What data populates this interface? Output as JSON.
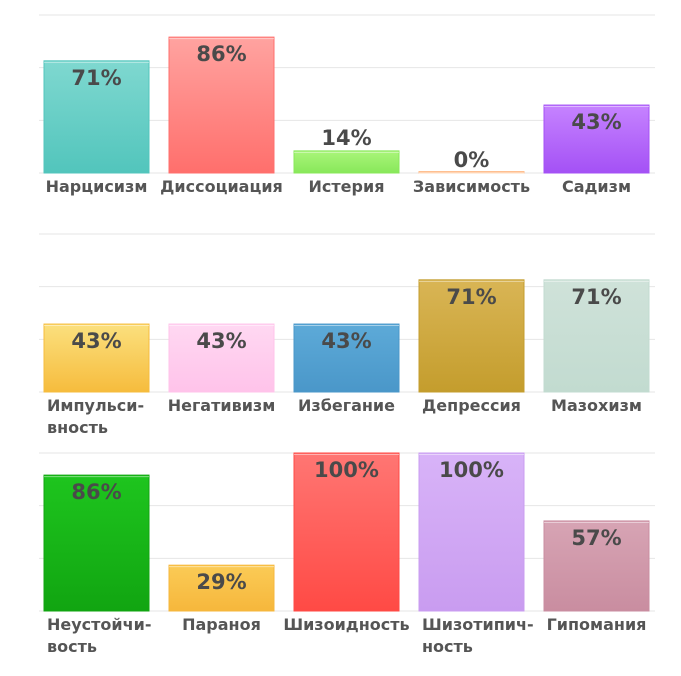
{
  "chart_data": [
    {
      "type": "bar",
      "ylim": [
        0,
        100
      ],
      "categories": [
        "Нарцисизм",
        "Диссоциация",
        "Истерия",
        "Зависимость",
        "Садизм"
      ],
      "category_lines": [
        [
          "Нарцисизм"
        ],
        [
          "Диссоциация"
        ],
        [
          "Истерия"
        ],
        [
          "Зависимость"
        ],
        [
          "Садизм"
        ]
      ],
      "values": [
        71,
        86,
        14,
        0,
        43
      ],
      "value_labels": [
        "71%",
        "86%",
        "14%",
        "0%",
        "43%"
      ],
      "colors": [
        [
          "#7fd8d0",
          "#52c5bc"
        ],
        [
          "#ffa3a0",
          "#ff6f6c"
        ],
        [
          "#aaf57a",
          "#88e85a"
        ],
        [
          "#ffd9b8",
          "#ffbf90"
        ],
        [
          "#c683ff",
          "#a451f5"
        ]
      ]
    },
    {
      "type": "bar",
      "ylim": [
        0,
        100
      ],
      "categories": [
        "Импульсивность",
        "Негативизм",
        "Избегание",
        "Депрессия",
        "Мазохизм"
      ],
      "category_lines": [
        [
          "Импульси-",
          "вность"
        ],
        [
          "Негативизм"
        ],
        [
          "Избегание"
        ],
        [
          "Депрессия"
        ],
        [
          "Мазохизм"
        ]
      ],
      "values": [
        43,
        43,
        43,
        71,
        71
      ],
      "value_labels": [
        "43%",
        "43%",
        "43%",
        "71%",
        "71%"
      ],
      "colors": [
        [
          "#fbe07e",
          "#f6bc3d"
        ],
        [
          "#ffd8f2",
          "#ffc3ea"
        ],
        [
          "#5daad8",
          "#4a97c9"
        ],
        [
          "#d9b555",
          "#c49d2d"
        ],
        [
          "#cfe2d9",
          "#c2dbd0"
        ]
      ]
    },
    {
      "type": "bar",
      "ylim": [
        0,
        100
      ],
      "categories": [
        "Неустойчивость",
        "Параноя",
        "Шизоидность",
        "Шизотипичность",
        "Гипомания"
      ],
      "category_lines": [
        [
          "Неустойчи-",
          "вость"
        ],
        [
          "Параноя"
        ],
        [
          "Шизоидность"
        ],
        [
          "Шизотипич-",
          "ность"
        ],
        [
          "Гипомания"
        ]
      ],
      "values": [
        86,
        29,
        100,
        100,
        57
      ],
      "value_labels": [
        "86%",
        "29%",
        "100%",
        "100%",
        "57%"
      ],
      "colors": [
        [
          "#1ec51e",
          "#11a511"
        ],
        [
          "#fbcb56",
          "#f6b73c"
        ],
        [
          "#ff7673",
          "#ff4a45"
        ],
        [
          "#d8b3f8",
          "#c99cf0"
        ],
        [
          "#d7a4b4",
          "#c98da0"
        ]
      ]
    }
  ]
}
